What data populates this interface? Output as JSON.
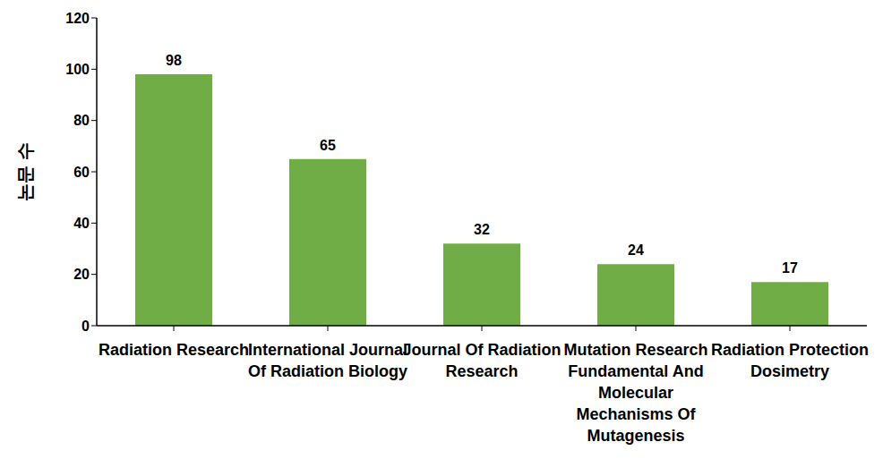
{
  "chart_data": {
    "type": "bar",
    "y_label": "논문 수",
    "categories": [
      "Radiation Research",
      "International Journal Of Radiation Biology",
      "Journal Of Radiation Research",
      "Mutation Research Fundamental And Molecular Mechanisms Of Mutagenesis",
      "Radiation Protection Dosimetry"
    ],
    "values": [
      98,
      65,
      32,
      24,
      17
    ],
    "color": "#70ad47",
    "ylim": [
      0,
      120
    ],
    "yticks": [
      0,
      20,
      40,
      60,
      80,
      100,
      120
    ],
    "grid": false,
    "data_labels": true
  }
}
